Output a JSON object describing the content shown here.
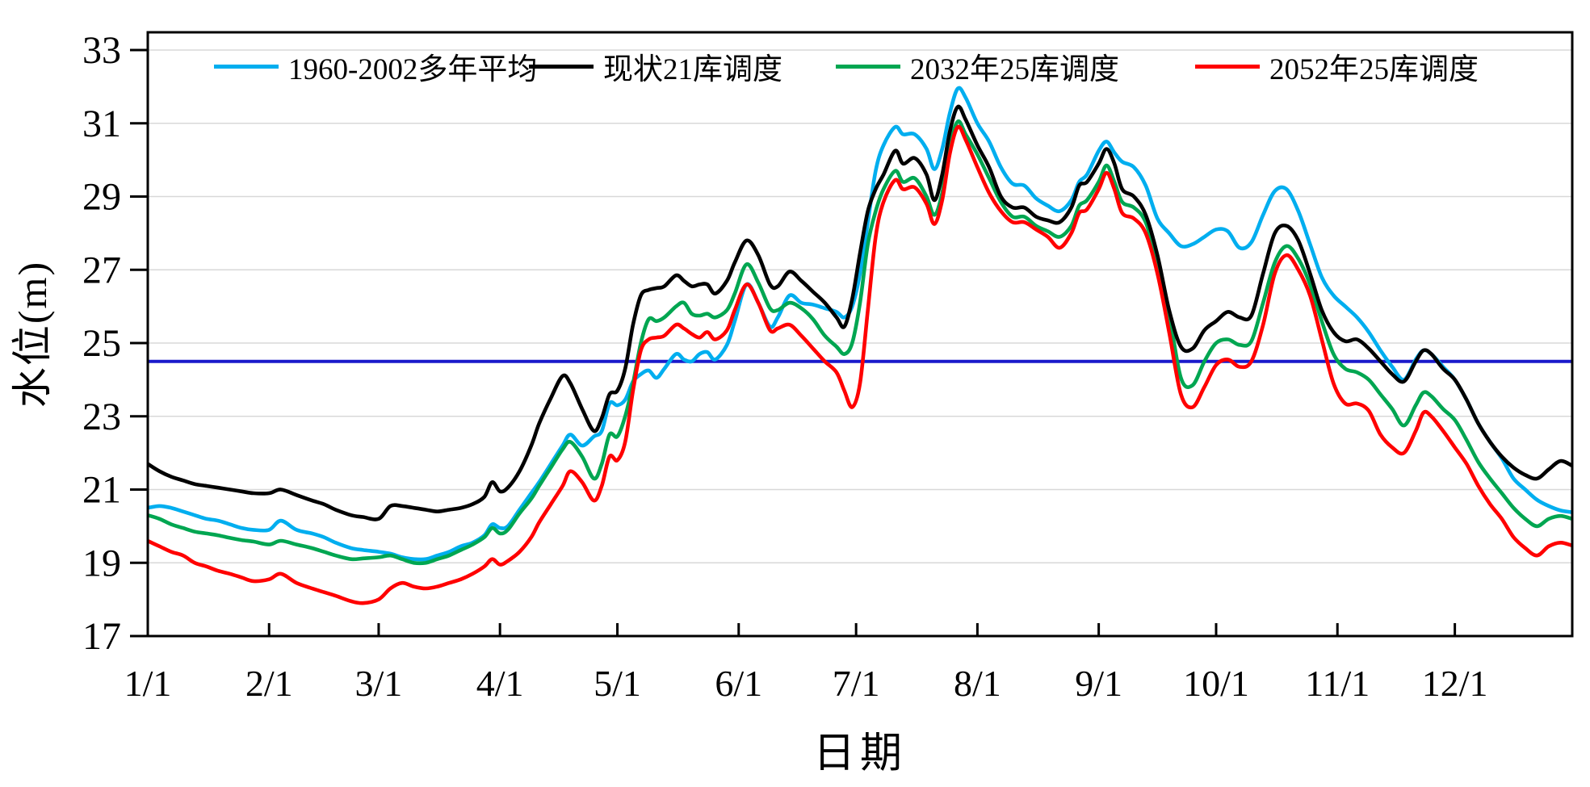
{
  "chart_data": {
    "type": "line",
    "title": "",
    "xlabel": "日期",
    "ylabel": "水位(m)",
    "ylim": [
      17,
      33
    ],
    "yticks": [
      17,
      19,
      21,
      23,
      25,
      27,
      29,
      31,
      33
    ],
    "grid": "horizontal-light-gray",
    "legend_position": "top-inside",
    "x_unit": "day_of_year",
    "xlim_days": [
      0,
      364
    ],
    "xticks": [
      {
        "day": 0,
        "label": "1/1"
      },
      {
        "day": 31,
        "label": "2/1"
      },
      {
        "day": 59,
        "label": "3/1"
      },
      {
        "day": 90,
        "label": "4/1"
      },
      {
        "day": 120,
        "label": "5/1"
      },
      {
        "day": 151,
        "label": "6/1"
      },
      {
        "day": 181,
        "label": "7/1"
      },
      {
        "day": 212,
        "label": "8/1"
      },
      {
        "day": 243,
        "label": "9/1"
      },
      {
        "day": 273,
        "label": "10/1"
      },
      {
        "day": 304,
        "label": "11/1"
      },
      {
        "day": 334,
        "label": "12/1"
      }
    ],
    "reference_line": {
      "value": 24.5,
      "color": "#1A1ACB"
    },
    "days": [
      0,
      3,
      6,
      9,
      12,
      15,
      18,
      21,
      24,
      27,
      31,
      34,
      38,
      42,
      45,
      48,
      52,
      55,
      59,
      62,
      65,
      68,
      71,
      74,
      77,
      80,
      83,
      86,
      88,
      90,
      92,
      95,
      98,
      100,
      103,
      106,
      108,
      111,
      114,
      116,
      118,
      120,
      122,
      124,
      126,
      128,
      130,
      132,
      135,
      137,
      139,
      141,
      143,
      145,
      148,
      150,
      153,
      156,
      159,
      161,
      164,
      167,
      170,
      173,
      176,
      178,
      180,
      182,
      184,
      186,
      188,
      191,
      193,
      196,
      199,
      201,
      203,
      205,
      207,
      209,
      212,
      215,
      218,
      221,
      224,
      227,
      230,
      233,
      236,
      238,
      240,
      243,
      245,
      247,
      249,
      252,
      255,
      258,
      261,
      264,
      267,
      270,
      273,
      276,
      279,
      282,
      285,
      288,
      291,
      294,
      297,
      300,
      303,
      306,
      309,
      312,
      315,
      318,
      321,
      324,
      326,
      328,
      331,
      334,
      337,
      340,
      343,
      346,
      349,
      352,
      355,
      358,
      361,
      364
    ],
    "series": [
      {
        "name": "1960-2002多年平均",
        "color": "#00AEEF",
        "values": [
          20.5,
          20.55,
          20.5,
          20.4,
          20.3,
          20.2,
          20.15,
          20.05,
          19.95,
          19.9,
          19.9,
          20.15,
          19.9,
          19.8,
          19.7,
          19.55,
          19.4,
          19.35,
          19.3,
          19.25,
          19.15,
          19.1,
          19.1,
          19.2,
          19.3,
          19.45,
          19.55,
          19.75,
          20.05,
          19.95,
          20.0,
          20.45,
          20.9,
          21.2,
          21.7,
          22.2,
          22.5,
          22.2,
          22.45,
          22.6,
          23.35,
          23.3,
          23.45,
          23.95,
          24.15,
          24.25,
          24.05,
          24.3,
          24.7,
          24.55,
          24.5,
          24.7,
          24.75,
          24.55,
          24.95,
          25.6,
          26.6,
          26.1,
          25.45,
          25.7,
          26.3,
          26.1,
          26.05,
          25.95,
          25.85,
          25.7,
          26.0,
          26.9,
          28.3,
          29.7,
          30.4,
          30.9,
          30.7,
          30.7,
          30.3,
          29.75,
          30.3,
          31.3,
          31.95,
          31.7,
          31.0,
          30.5,
          29.8,
          29.35,
          29.3,
          28.95,
          28.75,
          28.6,
          28.9,
          29.4,
          29.6,
          30.25,
          30.5,
          30.2,
          29.95,
          29.8,
          29.3,
          28.4,
          28.0,
          27.65,
          27.7,
          27.9,
          28.1,
          28.05,
          27.6,
          27.75,
          28.5,
          29.15,
          29.2,
          28.6,
          27.7,
          26.8,
          26.3,
          26.0,
          25.7,
          25.3,
          24.8,
          24.35,
          24.0,
          24.55,
          24.8,
          24.7,
          24.35,
          24.0,
          23.45,
          22.8,
          22.3,
          21.85,
          21.3,
          21.0,
          20.72,
          20.55,
          20.43,
          20.38
        ]
      },
      {
        "name": "现状21库调度",
        "color": "#000000",
        "values": [
          21.7,
          21.5,
          21.35,
          21.25,
          21.15,
          21.1,
          21.05,
          21.0,
          20.95,
          20.9,
          20.9,
          21.0,
          20.85,
          20.7,
          20.6,
          20.45,
          20.3,
          20.25,
          20.2,
          20.55,
          20.55,
          20.5,
          20.45,
          20.4,
          20.45,
          20.5,
          20.6,
          20.8,
          21.2,
          20.95,
          21.05,
          21.5,
          22.2,
          22.8,
          23.5,
          24.1,
          23.9,
          23.2,
          22.6,
          22.95,
          23.6,
          23.7,
          24.3,
          25.5,
          26.3,
          26.45,
          26.5,
          26.55,
          26.85,
          26.7,
          26.55,
          26.6,
          26.6,
          26.35,
          26.7,
          27.2,
          27.8,
          27.4,
          26.6,
          26.55,
          26.95,
          26.7,
          26.4,
          26.1,
          25.7,
          25.45,
          26.2,
          27.45,
          28.6,
          29.2,
          29.6,
          30.25,
          29.9,
          30.05,
          29.6,
          28.9,
          29.6,
          30.8,
          31.45,
          31.1,
          30.4,
          29.8,
          29.0,
          28.7,
          28.7,
          28.45,
          28.35,
          28.3,
          28.7,
          29.3,
          29.4,
          29.9,
          30.3,
          29.9,
          29.2,
          29.0,
          28.5,
          27.4,
          25.9,
          24.9,
          24.85,
          25.35,
          25.6,
          25.85,
          25.7,
          25.75,
          26.9,
          28.0,
          28.2,
          27.8,
          26.9,
          25.9,
          25.3,
          25.05,
          25.1,
          24.85,
          24.5,
          24.15,
          23.95,
          24.5,
          24.8,
          24.7,
          24.3,
          24.0,
          23.45,
          22.8,
          22.3,
          21.9,
          21.6,
          21.4,
          21.3,
          21.55,
          21.78,
          21.65
        ]
      },
      {
        "name": "2032年25库调度",
        "color": "#00A651",
        "values": [
          20.3,
          20.2,
          20.05,
          19.95,
          19.85,
          19.8,
          19.75,
          19.68,
          19.62,
          19.58,
          19.5,
          19.6,
          19.5,
          19.4,
          19.3,
          19.2,
          19.1,
          19.12,
          19.15,
          19.2,
          19.1,
          19.0,
          19.0,
          19.1,
          19.2,
          19.35,
          19.5,
          19.7,
          19.95,
          19.8,
          19.9,
          20.35,
          20.75,
          21.1,
          21.6,
          22.1,
          22.3,
          21.9,
          21.3,
          21.7,
          22.5,
          22.45,
          23.0,
          23.9,
          25.0,
          25.65,
          25.6,
          25.7,
          26.0,
          26.1,
          25.8,
          25.75,
          25.8,
          25.7,
          25.9,
          26.35,
          27.15,
          26.65,
          25.95,
          25.9,
          26.1,
          25.95,
          25.65,
          25.2,
          24.9,
          24.7,
          25.0,
          26.1,
          27.7,
          28.6,
          29.2,
          29.7,
          29.4,
          29.5,
          29.0,
          28.5,
          29.1,
          30.4,
          31.05,
          30.7,
          30.15,
          29.5,
          28.85,
          28.45,
          28.45,
          28.2,
          28.05,
          27.9,
          28.2,
          28.75,
          28.9,
          29.4,
          29.85,
          29.4,
          28.85,
          28.7,
          28.3,
          27.2,
          25.8,
          24.05,
          23.85,
          24.5,
          25.0,
          25.1,
          24.95,
          25.05,
          26.1,
          27.2,
          27.65,
          27.3,
          26.6,
          25.6,
          24.7,
          24.3,
          24.2,
          24.0,
          23.6,
          23.2,
          22.75,
          23.3,
          23.65,
          23.55,
          23.2,
          22.9,
          22.35,
          21.75,
          21.3,
          20.9,
          20.5,
          20.2,
          20.0,
          20.2,
          20.28,
          20.2
        ]
      },
      {
        "name": "2052年25库调度",
        "color": "#FF0000",
        "values": [
          19.6,
          19.45,
          19.3,
          19.2,
          19.0,
          18.9,
          18.78,
          18.7,
          18.6,
          18.5,
          18.55,
          18.7,
          18.45,
          18.3,
          18.2,
          18.1,
          17.95,
          17.9,
          18.0,
          18.3,
          18.45,
          18.35,
          18.3,
          18.35,
          18.45,
          18.55,
          18.7,
          18.9,
          19.1,
          18.95,
          19.05,
          19.3,
          19.7,
          20.1,
          20.6,
          21.1,
          21.5,
          21.2,
          20.7,
          21.1,
          21.9,
          21.8,
          22.3,
          23.7,
          24.8,
          25.1,
          25.15,
          25.2,
          25.5,
          25.4,
          25.25,
          25.15,
          25.3,
          25.1,
          25.35,
          25.9,
          26.6,
          26.1,
          25.35,
          25.4,
          25.5,
          25.2,
          24.85,
          24.5,
          24.2,
          23.7,
          23.25,
          23.9,
          25.9,
          27.9,
          28.85,
          29.45,
          29.2,
          29.25,
          28.8,
          28.25,
          28.9,
          30.2,
          30.9,
          30.55,
          29.8,
          29.1,
          28.6,
          28.3,
          28.3,
          28.1,
          27.9,
          27.6,
          28.0,
          28.55,
          28.65,
          29.2,
          29.65,
          29.2,
          28.55,
          28.4,
          28.0,
          26.9,
          25.3,
          23.6,
          23.25,
          23.8,
          24.4,
          24.55,
          24.35,
          24.5,
          25.5,
          26.9,
          27.4,
          27.0,
          26.3,
          25.1,
          23.9,
          23.35,
          23.35,
          23.15,
          22.5,
          22.15,
          22.0,
          22.6,
          23.1,
          23.0,
          22.6,
          22.15,
          21.7,
          21.1,
          20.6,
          20.2,
          19.7,
          19.4,
          19.2,
          19.45,
          19.55,
          19.47
        ]
      }
    ],
    "style": {
      "grid_color": "#D8D8D8",
      "axis_color": "#000000",
      "background": "#FFFFFF"
    }
  }
}
